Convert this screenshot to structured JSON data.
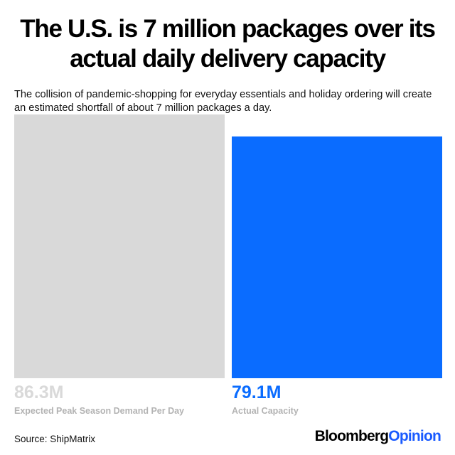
{
  "header": {
    "title": "The U.S. is 7 million packages over its actual daily delivery capacity",
    "subtitle": "The collision of pandemic-shopping for everyday essentials and holiday ordering will create an estimated shortfall of about 7 million packages a day."
  },
  "chart_data": {
    "type": "bar",
    "categories": [
      "Expected Peak Season Demand Per Day",
      "Actual Capacity"
    ],
    "values": [
      86.3,
      79.1
    ],
    "value_labels": [
      "86.3M",
      "79.1M"
    ],
    "unit": "M",
    "colors": [
      "#d9d9d9",
      "#0a6cff"
    ],
    "label_colors": [
      "#d9d9d9",
      "#0a6cff"
    ],
    "category_label_colors": [
      "#b3b3b3",
      "#b3b3b3"
    ],
    "ylim": [
      0,
      86.3
    ],
    "grid": false,
    "legend": "none"
  },
  "footer": {
    "source": "Source: ShipMatrix",
    "logo_brand": "Bloomberg",
    "logo_suffix": "Opinion"
  },
  "colors": {
    "background": "#ffffff",
    "title": "#000000",
    "accent": "#0a6cff"
  }
}
